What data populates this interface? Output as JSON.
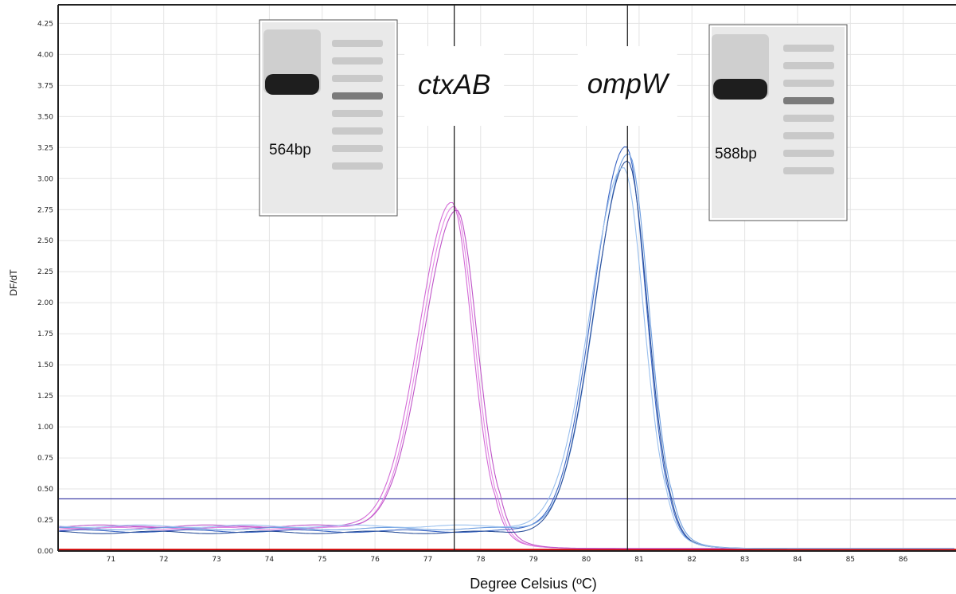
{
  "chart_data": {
    "type": "line",
    "xlabel": "Degree Celsius (ºC)",
    "ylabel": "DF/dT",
    "xlim": [
      70,
      87
    ],
    "ylim": [
      0,
      4.4
    ],
    "x_ticks": [
      "71",
      "72",
      "73",
      "74",
      "75",
      "76",
      "77",
      "78",
      "79",
      "80",
      "81",
      "82",
      "83",
      "84",
      "85",
      "86"
    ],
    "y_ticks": [
      "0.00",
      "0.25",
      "0.50",
      "0.75",
      "1.00",
      "1.25",
      "1.50",
      "1.75",
      "2.00",
      "2.25",
      "2.50",
      "2.75",
      "3.00",
      "3.25",
      "3.50",
      "3.75",
      "4.00",
      "4.25"
    ],
    "grid": true,
    "threshold_y": 0.42,
    "markers": [
      {
        "label": "ctxAB",
        "x": 77.5
      },
      {
        "label": "ompW",
        "x": 80.78
      }
    ],
    "series": [
      {
        "color": "#d36ad6",
        "peak_x": 77.45,
        "peak_y": 2.8,
        "baseline": 0.19
      },
      {
        "color": "#e387e4",
        "peak_x": 77.5,
        "peak_y": 2.77,
        "baseline": 0.18
      },
      {
        "color": "#bf55c8",
        "peak_x": 77.55,
        "peak_y": 2.75,
        "baseline": 0.2
      },
      {
        "color": "#3b66c4",
        "peak_x": 80.75,
        "peak_y": 3.25,
        "baseline": 0.16
      },
      {
        "color": "#6f9fe0",
        "peak_x": 80.8,
        "peak_y": 3.2,
        "baseline": 0.18
      },
      {
        "color": "#2a4f9a",
        "peak_x": 80.78,
        "peak_y": 3.15,
        "baseline": 0.15
      },
      {
        "color": "#9ac0ee",
        "peak_x": 80.7,
        "peak_y": 3.1,
        "baseline": 0.2
      }
    ],
    "negative_control": {
      "color": "#d00000",
      "value": 0.01
    },
    "gel_insets": [
      {
        "band_label": "564bp"
      },
      {
        "band_label": "588bp"
      }
    ]
  }
}
